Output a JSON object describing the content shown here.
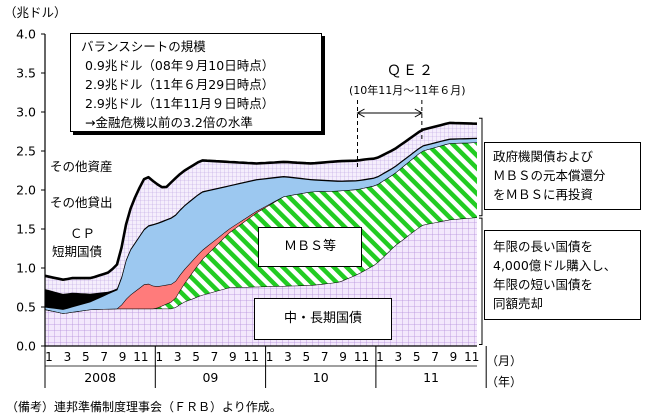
{
  "chart_data": {
    "type": "area",
    "ylabel": "（兆ドル）",
    "ylim": [
      0,
      4
    ],
    "yticks": [
      "0.0",
      "0.5",
      "1.0",
      "1.5",
      "2.0",
      "2.5",
      "3.0",
      "3.5",
      "4.0"
    ],
    "x_months": [
      "1",
      "3",
      "5",
      "7",
      "9",
      "11",
      "1",
      "3",
      "5",
      "7",
      "9",
      "11",
      "1",
      "3",
      "5",
      "7",
      "9",
      "11",
      "1",
      "3",
      "5",
      "7",
      "9",
      "11"
    ],
    "x_years": [
      "2008",
      "09",
      "10",
      "11"
    ],
    "x_unit_month": "（月）",
    "x_unit_year": "（年）",
    "x_start": "2008-01",
    "x_end": "2011-12",
    "series": [
      {
        "name": "中・長期国債",
        "color": "#d9c2ee",
        "pattern": "grid-purple",
        "x": [
          "2008-01",
          "2008-03",
          "2008-06",
          "2008-09",
          "2008-12",
          "2009-03",
          "2009-04",
          "2009-06",
          "2009-09",
          "2009-12",
          "2010-03",
          "2010-06",
          "2010-09",
          "2010-11",
          "2011-01",
          "2011-03",
          "2011-06",
          "2011-09",
          "2011-12"
        ],
        "values": [
          0.47,
          0.42,
          0.47,
          0.48,
          0.48,
          0.48,
          0.56,
          0.65,
          0.75,
          0.76,
          0.77,
          0.78,
          0.82,
          0.92,
          1.05,
          1.28,
          1.55,
          1.62,
          1.65
        ]
      },
      {
        "name": "MBS等",
        "color": "#22cc22",
        "pattern": "diagonal-green",
        "x": [
          "2008-01",
          "2008-12",
          "2009-01",
          "2009-03",
          "2009-06",
          "2009-09",
          "2009-12",
          "2010-03",
          "2010-06",
          "2010-09",
          "2010-12",
          "2011-03",
          "2011-06",
          "2011-09",
          "2011-12"
        ],
        "values": [
          0,
          0,
          0,
          0.1,
          0.45,
          0.7,
          0.95,
          1.15,
          1.2,
          1.17,
          1.05,
          0.93,
          0.95,
          0.98,
          0.96
        ]
      },
      {
        "name": "ＣＰ",
        "color": "#ff7b7b",
        "pattern": "solid",
        "x": [
          "2008-01",
          "2008-09",
          "2008-10",
          "2008-12",
          "2009-01",
          "2009-03",
          "2009-06",
          "2009-09",
          "2009-12",
          "2010-03"
        ],
        "values": [
          0,
          0,
          0.15,
          0.33,
          0.28,
          0.22,
          0.12,
          0.05,
          0.02,
          0
        ]
      },
      {
        "name": "その他貸出",
        "color": "#9cc8f0",
        "pattern": "solid",
        "x": [
          "2008-01",
          "2008-03",
          "2008-06",
          "2008-09",
          "2008-10",
          "2008-12",
          "2009-01",
          "2009-03",
          "2009-06",
          "2009-09",
          "2009-12",
          "2010-03",
          "2010-06",
          "2010-09",
          "2010-12",
          "2011-03",
          "2011-06",
          "2011-09",
          "2011-12"
        ],
        "values": [
          0.03,
          0.05,
          0.1,
          0.25,
          0.55,
          0.72,
          0.8,
          0.85,
          0.75,
          0.55,
          0.4,
          0.25,
          0.15,
          0.12,
          0.1,
          0.08,
          0.06,
          0.05,
          0.05
        ]
      },
      {
        "name": "短期国債",
        "color": "#000000",
        "pattern": "solid",
        "x": [
          "2008-01",
          "2008-04",
          "2008-06",
          "2008-08",
          "2008-10",
          "2008-12",
          "2009-03",
          "2009-06",
          "2011-12"
        ],
        "values": [
          0.23,
          0.18,
          0.1,
          0.02,
          0.01,
          0.01,
          0.01,
          0.01,
          0.01
        ]
      },
      {
        "name": "その他資産",
        "color": "#ecdcfa",
        "pattern": "grid-small",
        "x": [
          "2008-01",
          "2008-06",
          "2008-08",
          "2008-09",
          "2008-10",
          "2008-11",
          "2008-12",
          "2009-01",
          "2009-02",
          "2009-03",
          "2009-06",
          "2009-09",
          "2009-12",
          "2010-03",
          "2010-06",
          "2010-09",
          "2010-12",
          "2011-03",
          "2011-06",
          "2011-09",
          "2011-12"
        ],
        "values": [
          0.17,
          0.2,
          0.25,
          0.32,
          0.48,
          0.6,
          0.65,
          0.52,
          0.4,
          0.47,
          0.4,
          0.3,
          0.2,
          0.18,
          0.2,
          0.25,
          0.25,
          0.22,
          0.2,
          0.2,
          0.18
        ]
      }
    ],
    "annotations": {
      "qe2": "ＱＥ２",
      "qe2_period": "(10年11月～11年６月)",
      "mbs": "ＭＢＳ等",
      "long_term": "中・長期国債"
    }
  },
  "balance_box": {
    "title": "バランスシートの規模",
    "lines": [
      "0.9兆ドル（08年９月10日時点）",
      "2.9兆ドル（11年６月29日時点）",
      "2.9兆ドル（11年11月９日時点）",
      "→金融危機以前の3.2倍の水準"
    ]
  },
  "callouts": {
    "mbs_reinvest": [
      "政府機関債および",
      "ＭＢＳの元本償還分",
      "をＭＢＳに再投資"
    ],
    "treasury_buy": [
      "年限の長い国債を",
      "4,000億ドル購入し、",
      "年限の短い国債を",
      "同額売却"
    ]
  },
  "source_note": "（備考）連邦準備制度理事会（ＦＲＢ）より作成。"
}
